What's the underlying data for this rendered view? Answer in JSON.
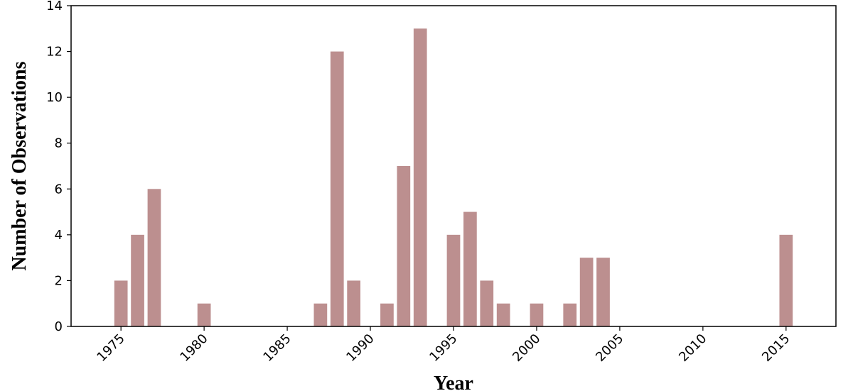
{
  "chart_data": {
    "type": "bar",
    "xlabel": "Year",
    "ylabel": "Number of Observations",
    "bar_color": "#bc8f8f",
    "xlim": [
      1972,
      2018
    ],
    "ylim": [
      0,
      14
    ],
    "xticks": [
      1975,
      1980,
      1985,
      1990,
      1995,
      2000,
      2005,
      2010,
      2015
    ],
    "yticks": [
      0,
      2,
      4,
      6,
      8,
      10,
      12,
      14
    ],
    "bars": [
      {
        "year": 1975,
        "value": 2
      },
      {
        "year": 1976,
        "value": 4
      },
      {
        "year": 1977,
        "value": 6
      },
      {
        "year": 1980,
        "value": 1
      },
      {
        "year": 1987,
        "value": 1
      },
      {
        "year": 1988,
        "value": 12
      },
      {
        "year": 1989,
        "value": 2
      },
      {
        "year": 1991,
        "value": 1
      },
      {
        "year": 1992,
        "value": 7
      },
      {
        "year": 1993,
        "value": 13
      },
      {
        "year": 1995,
        "value": 4
      },
      {
        "year": 1996,
        "value": 5
      },
      {
        "year": 1997,
        "value": 2
      },
      {
        "year": 1998,
        "value": 1
      },
      {
        "year": 2000,
        "value": 1
      },
      {
        "year": 2002,
        "value": 1
      },
      {
        "year": 2003,
        "value": 3
      },
      {
        "year": 2004,
        "value": 3
      },
      {
        "year": 2015,
        "value": 4
      }
    ]
  }
}
